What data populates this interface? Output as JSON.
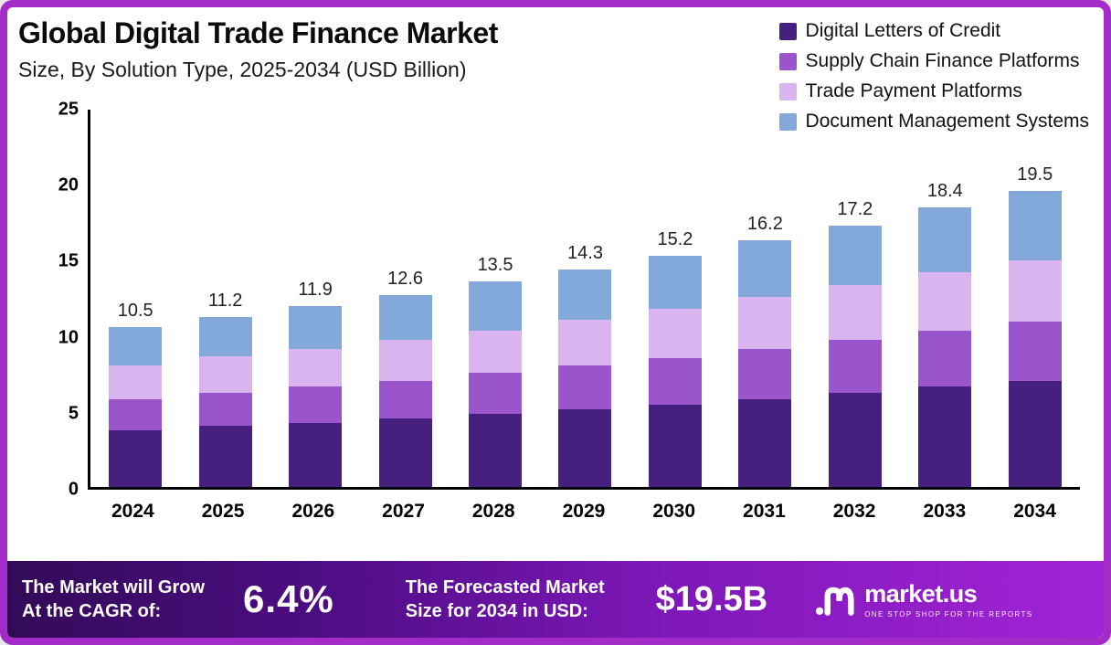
{
  "header": {
    "title": "Global Digital Trade Finance Market",
    "subtitle": "Size, By Solution Type, 2025-2034 (USD Billion)"
  },
  "legend": [
    {
      "label": "Digital Letters of Credit",
      "color": "#46207e"
    },
    {
      "label": "Supply Chain Finance Platforms",
      "color": "#9a55cd"
    },
    {
      "label": "Trade Payment Platforms",
      "color": "#dab4ef"
    },
    {
      "label": "Document Management Systems",
      "color": "#83a9db"
    }
  ],
  "chart_data": {
    "type": "bar",
    "stacked": true,
    "title": "Global Digital Trade Finance Market Size, By Solution Type, 2025-2034 (USD Billion)",
    "xlabel": "",
    "ylabel": "",
    "ylim": [
      0,
      25
    ],
    "yticks": [
      0,
      5,
      10,
      15,
      20,
      25
    ],
    "grid": false,
    "legend_position": "top-right",
    "categories": [
      "2024",
      "2025",
      "2026",
      "2027",
      "2028",
      "2029",
      "2030",
      "2031",
      "2032",
      "2033",
      "2034"
    ],
    "totals": [
      10.5,
      11.2,
      11.9,
      12.6,
      13.5,
      14.3,
      15.2,
      16.2,
      17.2,
      18.4,
      19.5
    ],
    "series": [
      {
        "name": "Digital Letters of Credit",
        "color": "#46207e",
        "values": [
          3.7,
          4.0,
          4.2,
          4.5,
          4.8,
          5.1,
          5.4,
          5.8,
          6.2,
          6.6,
          7.0
        ]
      },
      {
        "name": "Supply Chain Finance Platforms",
        "color": "#9a55cd",
        "values": [
          2.1,
          2.2,
          2.4,
          2.5,
          2.7,
          2.9,
          3.1,
          3.3,
          3.5,
          3.7,
          3.9
        ]
      },
      {
        "name": "Trade Payment Platforms",
        "color": "#dab4ef",
        "values": [
          2.2,
          2.4,
          2.5,
          2.7,
          2.8,
          3.0,
          3.2,
          3.4,
          3.6,
          3.8,
          4.0
        ]
      },
      {
        "name": "Document Management Systems",
        "color": "#83a9db",
        "values": [
          2.5,
          2.6,
          2.8,
          2.9,
          3.2,
          3.3,
          3.5,
          3.7,
          3.9,
          4.3,
          4.6
        ]
      }
    ]
  },
  "footer": {
    "cagr_label_line1": "The Market will Grow",
    "cagr_label_line2": "At the CAGR of:",
    "cagr_value": "6.4%",
    "forecast_label_line1": "The Forecasted Market",
    "forecast_label_line2": "Size for 2034 in USD:",
    "forecast_value": "$19.5B",
    "logo_text": "market.us",
    "logo_tagline": "ONE STOP SHOP FOR THE REPORTS"
  }
}
